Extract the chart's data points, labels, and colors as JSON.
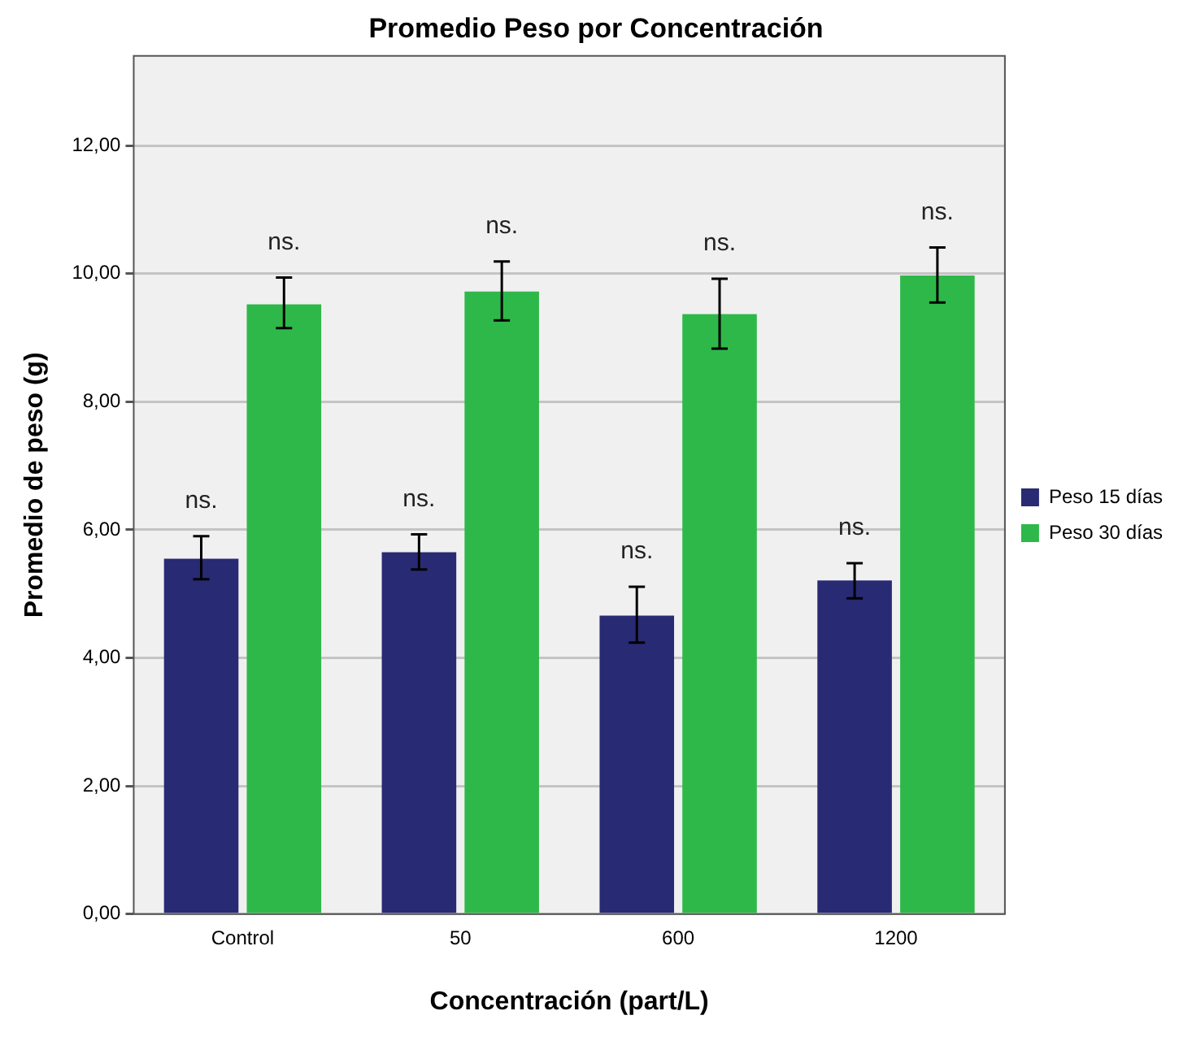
{
  "chart_data": {
    "type": "bar",
    "title": "Promedio Peso por Concentración",
    "xlabel": "Concentración (part/L)",
    "ylabel": "Promedio de peso (g)",
    "categories": [
      "Control",
      "50",
      "600",
      "1200"
    ],
    "series": [
      {
        "name": "Peso 15 días",
        "color": "#282a73",
        "values": [
          5.55,
          5.65,
          4.66,
          5.21
        ],
        "errors": [
          [
            5.23,
            5.9
          ],
          [
            5.38,
            5.93
          ],
          [
            4.24,
            5.11
          ],
          [
            4.93,
            5.48
          ]
        ],
        "value_labels": [
          "ns.",
          "ns.",
          "ns.",
          "ns."
        ]
      },
      {
        "name": "Peso 30 días",
        "color": "#2fb84a",
        "values": [
          9.52,
          9.72,
          9.37,
          9.97
        ],
        "errors": [
          [
            9.15,
            9.94
          ],
          [
            9.27,
            10.19
          ],
          [
            8.83,
            9.92
          ],
          [
            9.55,
            10.41
          ]
        ],
        "value_labels": [
          "ns.",
          "ns.",
          "ns.",
          "ns."
        ]
      }
    ],
    "ylim": [
      0,
      13.4
    ],
    "yticks": [
      {
        "value": 0,
        "label": "0,00"
      },
      {
        "value": 2,
        "label": "2,00"
      },
      {
        "value": 4,
        "label": "4,00"
      },
      {
        "value": 6,
        "label": "6,00"
      },
      {
        "value": 8,
        "label": "8,00"
      },
      {
        "value": 10,
        "label": "10,00"
      },
      {
        "value": 12,
        "label": "12,00"
      }
    ],
    "grid": "y",
    "legend": "right"
  }
}
